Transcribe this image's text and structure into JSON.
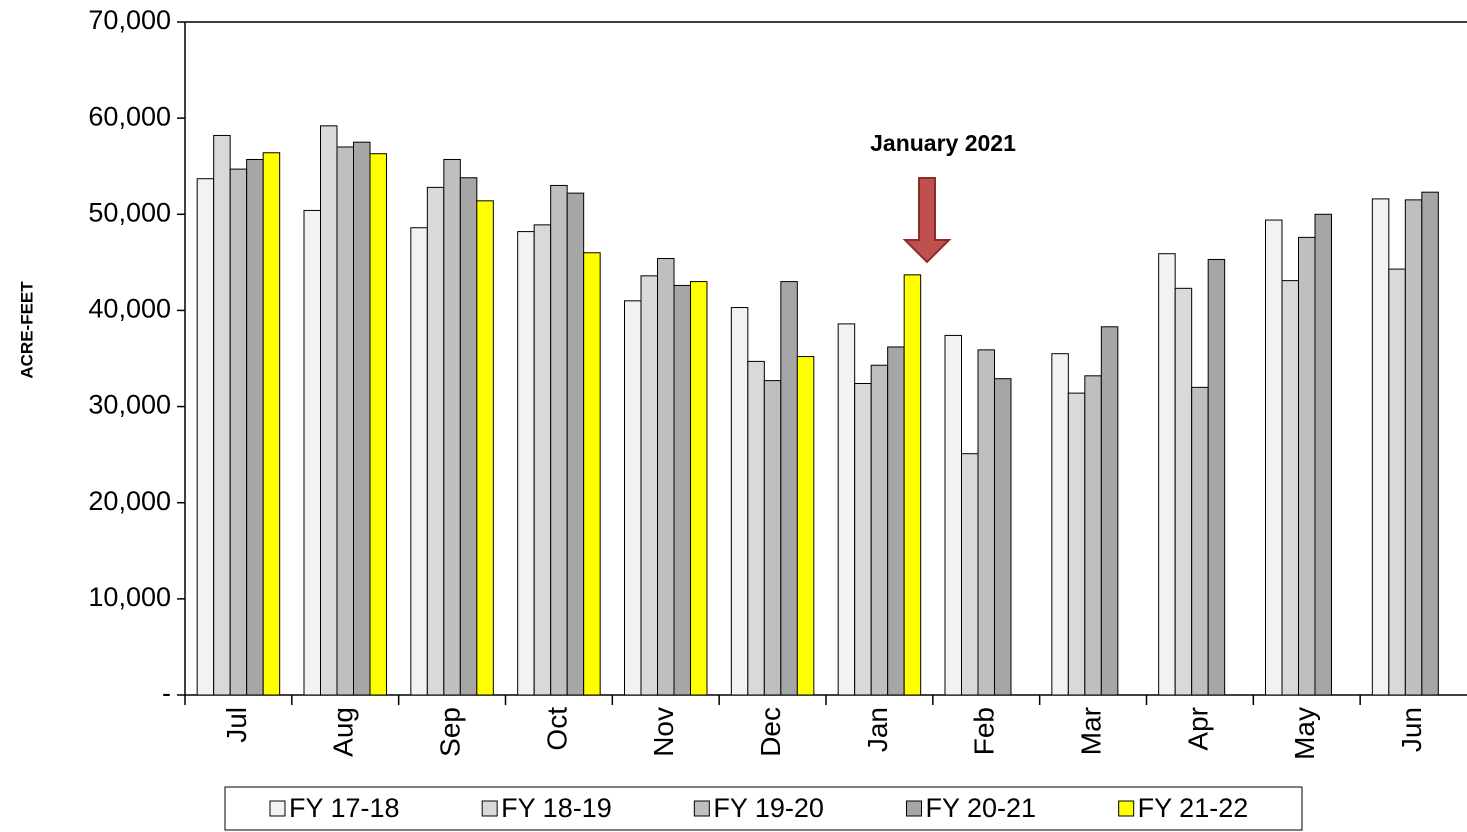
{
  "chart_data": {
    "type": "bar",
    "y_label": "ACRE-FEET",
    "annotation": "January 2021",
    "categories": [
      "Jul",
      "Aug",
      "Sep",
      "Oct",
      "Nov",
      "Dec",
      "Jan",
      "Feb",
      "Mar",
      "Apr",
      "May",
      "Jun"
    ],
    "series": [
      {
        "name": "FY 17-18",
        "color": "#f2f2f2",
        "values": [
          53700,
          50400,
          48600,
          48200,
          41000,
          40300,
          38600,
          37400,
          35500,
          45900,
          49400,
          51600
        ]
      },
      {
        "name": "FY 18-19",
        "color": "#d9d9d9",
        "values": [
          58200,
          59200,
          52800,
          48900,
          43600,
          34700,
          32400,
          25100,
          31400,
          42300,
          43100,
          44300
        ]
      },
      {
        "name": "FY 19-20",
        "color": "#bfbfbf",
        "values": [
          54700,
          57000,
          55700,
          53000,
          45400,
          32700,
          34300,
          35900,
          33200,
          32000,
          47600,
          51500
        ]
      },
      {
        "name": "FY 20-21",
        "color": "#a6a6a6",
        "values": [
          55700,
          57500,
          53800,
          52200,
          42600,
          43000,
          36200,
          32900,
          38300,
          45300,
          50000,
          52300
        ]
      },
      {
        "name": "FY 21-22",
        "color": "#ffff00",
        "values": [
          56400,
          56300,
          51400,
          46000,
          43000,
          35200,
          43700,
          null,
          null,
          null,
          null,
          null
        ]
      }
    ],
    "ylim": [
      0,
      70000
    ],
    "yticks": [
      {
        "value": 0,
        "label": "-"
      },
      {
        "value": 10000,
        "label": "10,000"
      },
      {
        "value": 20000,
        "label": "20,000"
      },
      {
        "value": 30000,
        "label": "30,000"
      },
      {
        "value": 40000,
        "label": "40,000"
      },
      {
        "value": 50000,
        "label": "50,000"
      },
      {
        "value": 60000,
        "label": "60,000"
      },
      {
        "value": 70000,
        "label": "70,000"
      }
    ],
    "grid": false,
    "legend": "bottom"
  }
}
